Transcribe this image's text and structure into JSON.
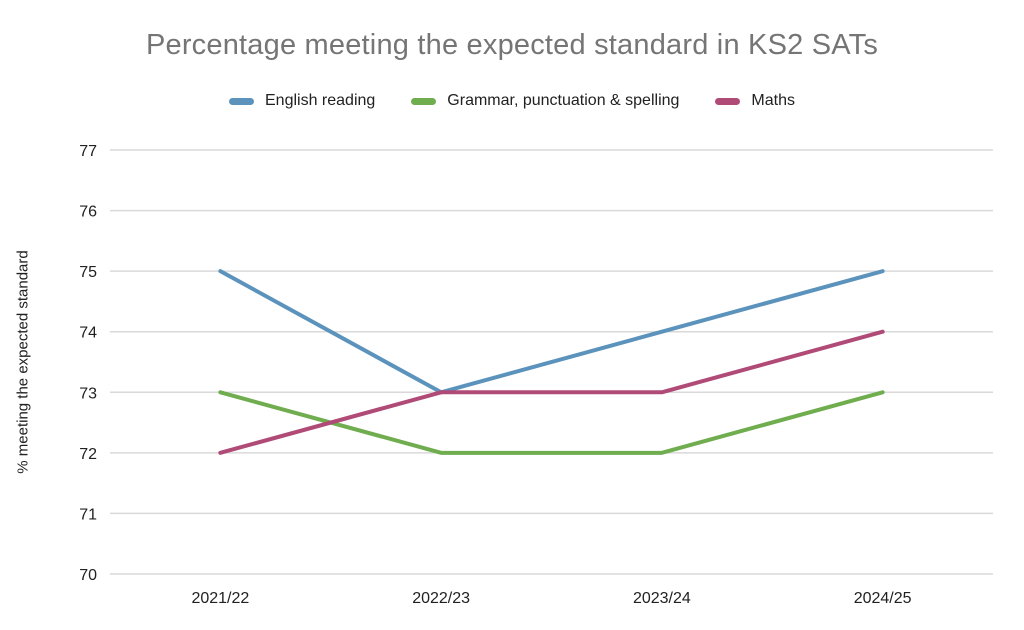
{
  "chart_data": {
    "type": "line",
    "title": "Percentage meeting the expected standard in KS2 SATs",
    "categories": [
      "2021/22",
      "2022/23",
      "2023/24",
      "2024/25"
    ],
    "series": [
      {
        "name": "English reading",
        "color": "#5B93BC",
        "values": [
          75,
          73,
          74,
          75
        ]
      },
      {
        "name": "Grammar, punctuation & spelling",
        "color": "#6FAD4F",
        "values": [
          73,
          72,
          72,
          73
        ]
      },
      {
        "name": "Maths",
        "color": "#B04B78",
        "values": [
          72,
          73,
          73,
          74
        ]
      }
    ],
    "xlabel": "",
    "ylabel": "% meeting the expected standard",
    "ylim": [
      70,
      77
    ],
    "ytick_step": 1,
    "grid": true,
    "legend_position": "top"
  },
  "colors": {
    "title": "#757575",
    "grid": "#D9D9D9",
    "axis_text": "#212121",
    "background": "#FFFFFF"
  }
}
